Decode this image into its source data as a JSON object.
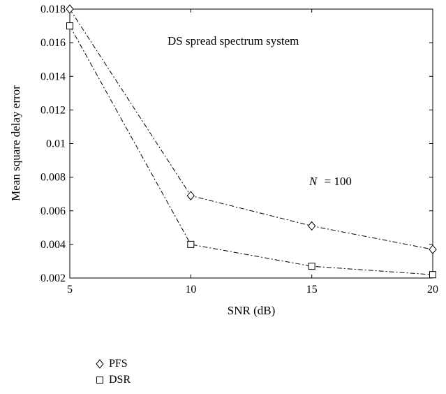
{
  "chart_data": {
    "type": "line",
    "title": "",
    "xlabel": "SNR (dB)",
    "ylabel": "Mean square delay error",
    "xlim": [
      5,
      20
    ],
    "ylim": [
      0.002,
      0.018
    ],
    "x_ticks": [
      5,
      10,
      15,
      20
    ],
    "x_tick_labels": [
      "5",
      "10",
      "15",
      "20"
    ],
    "y_ticks": [
      0.002,
      0.004,
      0.006,
      0.008,
      0.01,
      0.012,
      0.014,
      0.016,
      0.018
    ],
    "y_tick_labels": [
      "0.002",
      "0.004",
      "0.006",
      "0.008",
      "0.01",
      "0.012",
      "0.014",
      "0.016",
      "0.018"
    ],
    "grid": false,
    "legend_position": "below-left",
    "annotations": {
      "system": "DS spread spectrum system",
      "n_label": "N",
      "n_value": "= 100"
    },
    "series": [
      {
        "name": "PFS",
        "marker": "diamond",
        "line_style": "dash-dot",
        "color": "#000000",
        "x": [
          5,
          10,
          15,
          20
        ],
        "y": [
          0.018,
          0.0069,
          0.0051,
          0.0037
        ]
      },
      {
        "name": "DSR",
        "marker": "square",
        "line_style": "dash-dot",
        "color": "#000000",
        "x": [
          5,
          10,
          15,
          20
        ],
        "y": [
          0.017,
          0.004,
          0.0027,
          0.0022
        ]
      }
    ]
  }
}
